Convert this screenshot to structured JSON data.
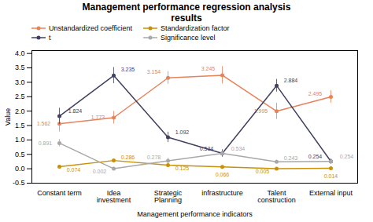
{
  "chart_data": {
    "type": "line",
    "title": "Management performance regression analysis\nresults",
    "xlabel": "Management performance indicators",
    "ylabel": "Value",
    "categories": [
      "Constant term",
      "Idea\ninvestment",
      "Strategic\nPlanning",
      "infrastructure",
      "Talent\nconstruction",
      "External input"
    ],
    "series": [
      {
        "name": "Unstandardized coefficient",
        "color": "#E8825A",
        "marker": "circle",
        "values": [
          1.562,
          1.773,
          3.154,
          3.245,
          1.995,
          2.495
        ],
        "errors": [
          0.28,
          0.22,
          0.22,
          0.3,
          0.28,
          0.22
        ]
      },
      {
        "name": "t",
        "color": "#404060",
        "marker": "circle",
        "values": [
          1.824,
          3.235,
          1.092,
          0.534,
          2.884,
          0.254
        ],
        "errors": [
          0.28,
          0.28,
          0.18,
          0.13,
          0.22,
          0.09
        ]
      },
      {
        "name": "Standardization factor",
        "color": "#C8900A",
        "marker": "circle",
        "values": [
          0.074,
          0.286,
          0.125,
          0.066,
          0.005,
          0.014
        ],
        "errors": [
          0.05,
          0.05,
          0.05,
          0.04,
          0.03,
          0.03
        ]
      },
      {
        "name": "Significance level",
        "color": "#A8A8A8",
        "marker": "circle",
        "values": [
          0.891,
          0.002,
          0.278,
          0.534,
          0.243,
          0.254
        ],
        "errors": [
          0.13,
          0.04,
          0.09,
          0.07,
          0.06,
          0.05
        ]
      }
    ],
    "ylim": [
      -0.5,
      4.1
    ],
    "yticks": [
      -0.5,
      {
        "value": 0,
        "label": "0.0"
      },
      0.5,
      {
        "value": 1,
        "label": "1.0"
      },
      1.5,
      {
        "value": 2,
        "label": "2.0"
      },
      2.5,
      {
        "value": 3,
        "label": "3.0"
      },
      3.5,
      {
        "value": 4,
        "label": "4.0"
      }
    ],
    "grid": false,
    "data_labels": true,
    "legend": "top"
  }
}
